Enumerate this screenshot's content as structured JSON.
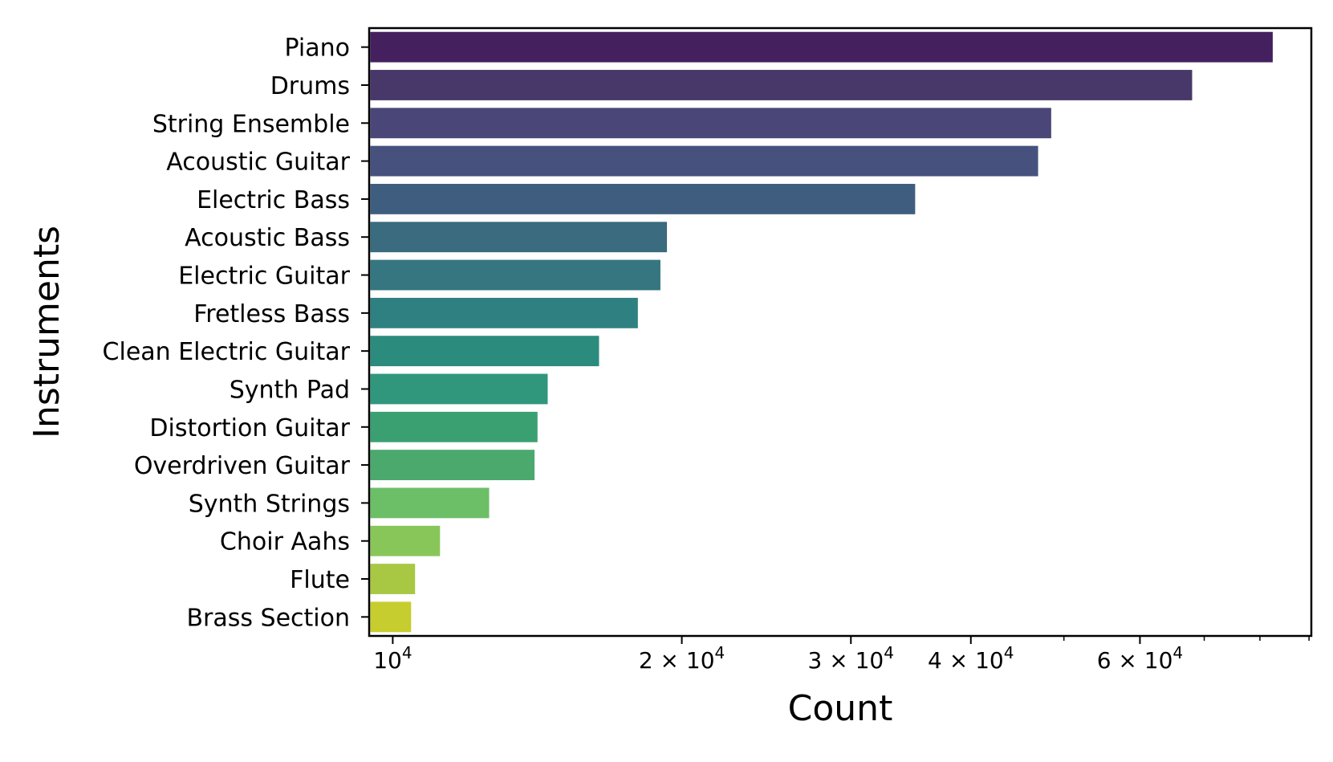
{
  "chart_data": {
    "type": "bar",
    "orientation": "horizontal",
    "title": "",
    "xlabel": "Count",
    "ylabel": "Instruments",
    "x_scale": "log",
    "xlim": [
      9450,
      90500
    ],
    "x_major_ticks": [
      {
        "value": 10000,
        "base": "10",
        "exp": "4",
        "mult": ""
      },
      {
        "value": 20000,
        "base": "10",
        "exp": "4",
        "mult": "2 × "
      },
      {
        "value": 30000,
        "base": "10",
        "exp": "4",
        "mult": "3 × "
      },
      {
        "value": 40000,
        "base": "10",
        "exp": "4",
        "mult": "4 × "
      },
      {
        "value": 60000,
        "base": "10",
        "exp": "4",
        "mult": "6 × "
      }
    ],
    "x_minor_ticks": [
      50000,
      70000,
      80000,
      90000
    ],
    "grid": false,
    "legend": "none",
    "categories": [
      "Piano",
      "Drums",
      "String Ensemble",
      "Acoustic Guitar",
      "Electric Bass",
      "Acoustic Bass",
      "Electric Guitar",
      "Fretless Bass",
      "Clean Electric Guitar",
      "Synth Pad",
      "Distortion Guitar",
      "Overdriven Guitar",
      "Synth Strings",
      "Choir Aahs",
      "Flute",
      "Brass Section"
    ],
    "values": [
      82500,
      68000,
      48500,
      47000,
      35000,
      19300,
      19000,
      18000,
      16400,
      14500,
      14150,
      14050,
      12600,
      11200,
      10550,
      10450
    ],
    "colors": [
      "#45205f",
      "#483769",
      "#4a4778",
      "#46527d",
      "#3f5e7f",
      "#3a6b7e",
      "#357680",
      "#2e8180",
      "#2b8c7e",
      "#30977d",
      "#3aa072",
      "#4ba96e",
      "#6cbf67",
      "#89c65a",
      "#a8c844",
      "#c6cd2f"
    ]
  }
}
